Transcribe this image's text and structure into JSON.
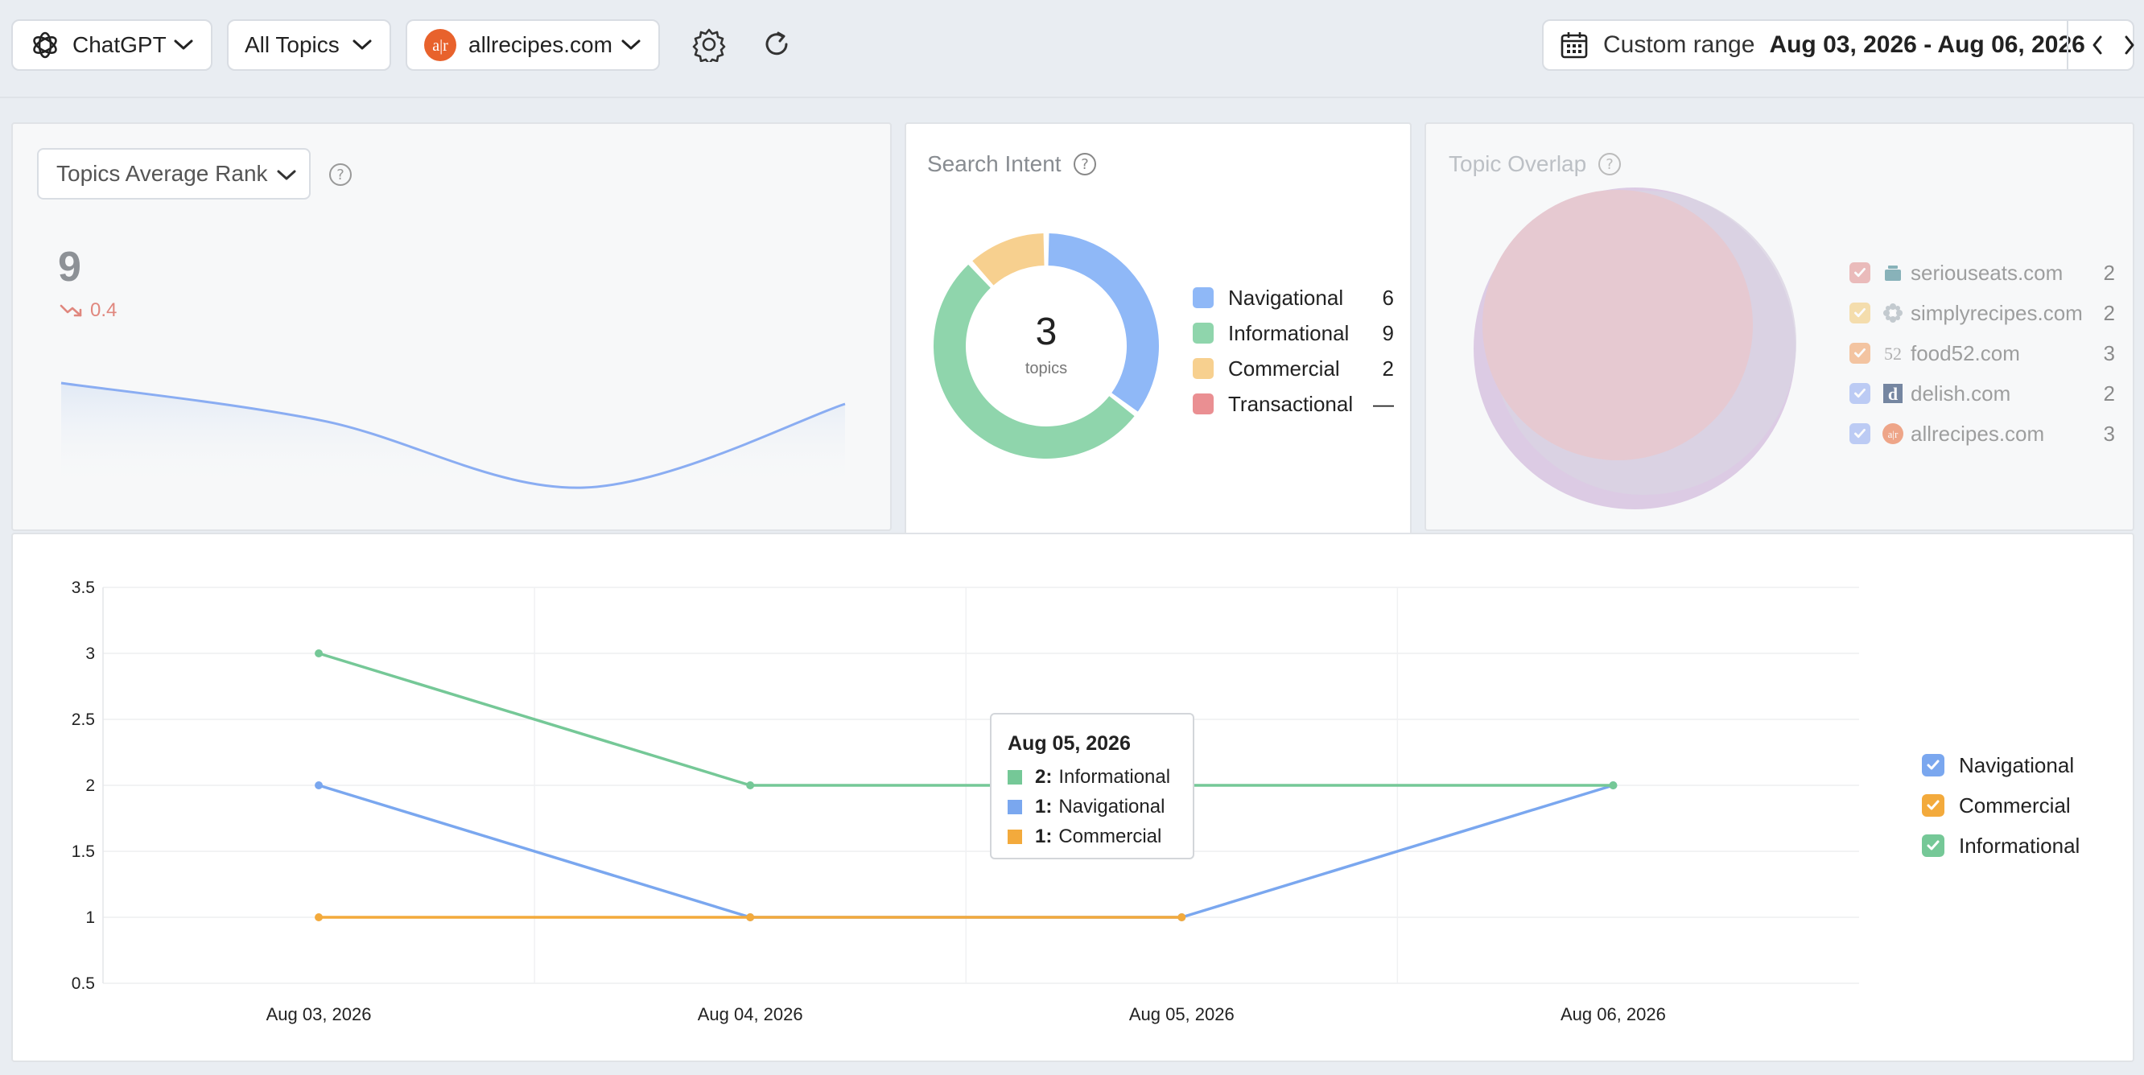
{
  "toolbar": {
    "engine": "ChatGPT",
    "topics": "All Topics",
    "domain": "allrecipes.com",
    "date_range_label": "Custom range",
    "date_range_value": "Aug 03, 2026 - Aug 06, 2026"
  },
  "rank_panel": {
    "selector": "Topics Average Rank",
    "value": "9",
    "delta": "0.4",
    "sparkline": [
      3.5,
      2.6,
      1.0,
      3.0
    ]
  },
  "search_intent": {
    "title": "Search Intent",
    "center_value": "3",
    "center_label": "topics",
    "items": [
      {
        "label": "Navigational",
        "value": "6",
        "color": "#8fb8f7"
      },
      {
        "label": "Informational",
        "value": "9",
        "color": "#8fd5ac"
      },
      {
        "label": "Commercial",
        "value": "2",
        "color": "#f7d08f"
      },
      {
        "label": "Transactional",
        "value": "—",
        "color": "#ea8f92"
      }
    ]
  },
  "topic_overlap": {
    "title": "Topic Overlap",
    "items": [
      {
        "label": "seriouseats.com",
        "value": "2",
        "color": "#e08a8a",
        "icon": "pot-icon"
      },
      {
        "label": "simplyrecipes.com",
        "value": "2",
        "color": "#f2c770",
        "icon": "flower-icon"
      },
      {
        "label": "food52.com",
        "value": "3",
        "color": "#f09a5a",
        "icon": "food52-icon"
      },
      {
        "label": "delish.com",
        "value": "2",
        "color": "#8da8f0",
        "icon": "delish-icon"
      },
      {
        "label": "allrecipes.com",
        "value": "3",
        "color": "#8da8f0",
        "icon": "allrecipes-icon"
      }
    ]
  },
  "chart_data": {
    "type": "line",
    "x": [
      "Aug 03, 2026",
      "Aug 04, 2026",
      "Aug 05, 2026",
      "Aug 06, 2026"
    ],
    "ylim": [
      0.5,
      3.5
    ],
    "yticks": [
      "0.5",
      "1",
      "1.5",
      "2",
      "2.5",
      "3",
      "3.5"
    ],
    "grid": true,
    "legend_position": "right",
    "series": [
      {
        "name": "Navigational",
        "values": [
          2,
          1,
          1,
          2
        ],
        "color": "#7aa7ef"
      },
      {
        "name": "Commercial",
        "values": [
          1,
          1,
          1,
          null
        ],
        "color": "#f3aa3c"
      },
      {
        "name": "Informational",
        "values": [
          3,
          2,
          2,
          2
        ],
        "color": "#75c897"
      }
    ],
    "tooltip": {
      "date": "Aug 05, 2026",
      "rows": [
        {
          "value": "2:",
          "label": "Informational",
          "color": "#75c897"
        },
        {
          "value": "1:",
          "label": "Navigational",
          "color": "#7aa7ef"
        },
        {
          "value": "1:",
          "label": "Commercial",
          "color": "#f3aa3c"
        }
      ]
    }
  }
}
